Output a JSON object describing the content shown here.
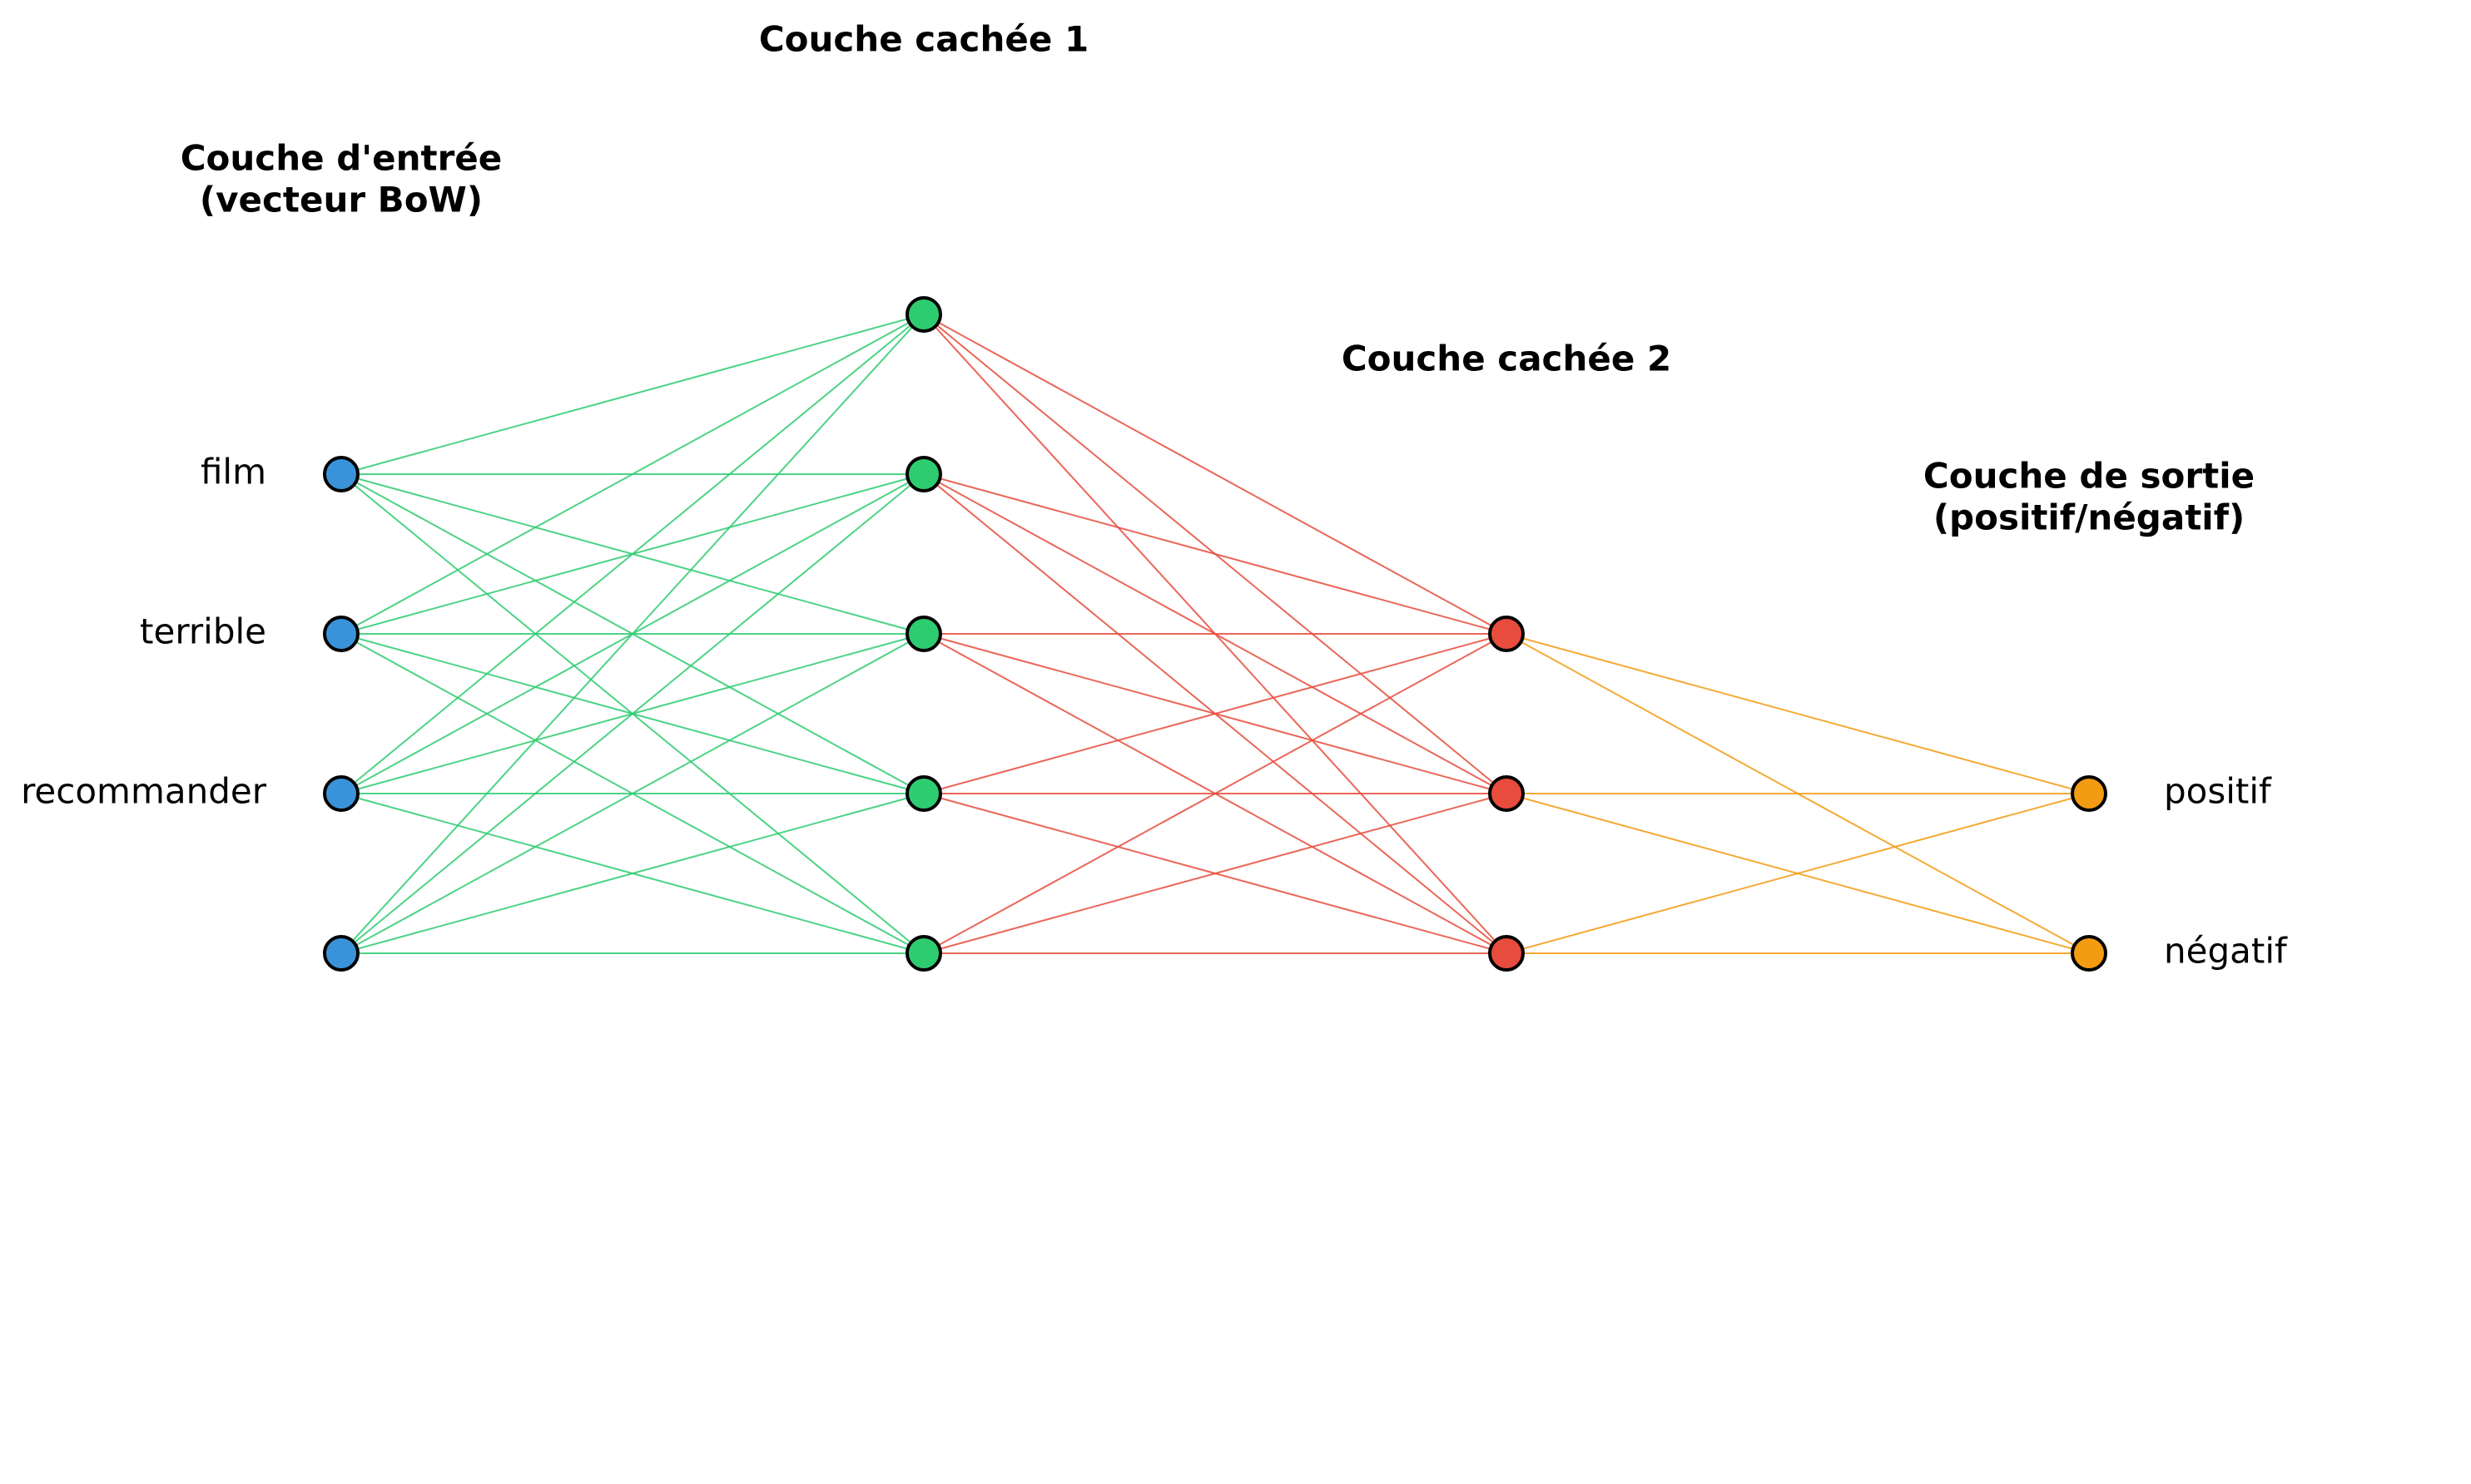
{
  "diagram": {
    "type": "neural-network",
    "layers": [
      {
        "id": "input",
        "title_lines": [
          "Couche d'entrée",
          "(vecteur BoW)"
        ],
        "neurons": 4,
        "neuron_labels": [
          "film",
          "terrible",
          "recommander",
          ""
        ],
        "color": "#3a93d9"
      },
      {
        "id": "hidden1",
        "title_lines": [
          "Couche cachée 1"
        ],
        "neurons": 5,
        "neuron_labels": [],
        "color": "#2ecc71"
      },
      {
        "id": "hidden2",
        "title_lines": [
          "Couche cachée 2"
        ],
        "neurons": 3,
        "neuron_labels": [],
        "color": "#e74c3c"
      },
      {
        "id": "output",
        "title_lines": [
          "Couche de sortie",
          "(positif/négatif)"
        ],
        "neurons": 2,
        "neuron_labels": [
          "positif",
          "négatif"
        ],
        "color": "#f39c12"
      }
    ],
    "edge_colors": [
      "#2ecc71",
      "#e74c3c",
      "#f39c12"
    ]
  }
}
